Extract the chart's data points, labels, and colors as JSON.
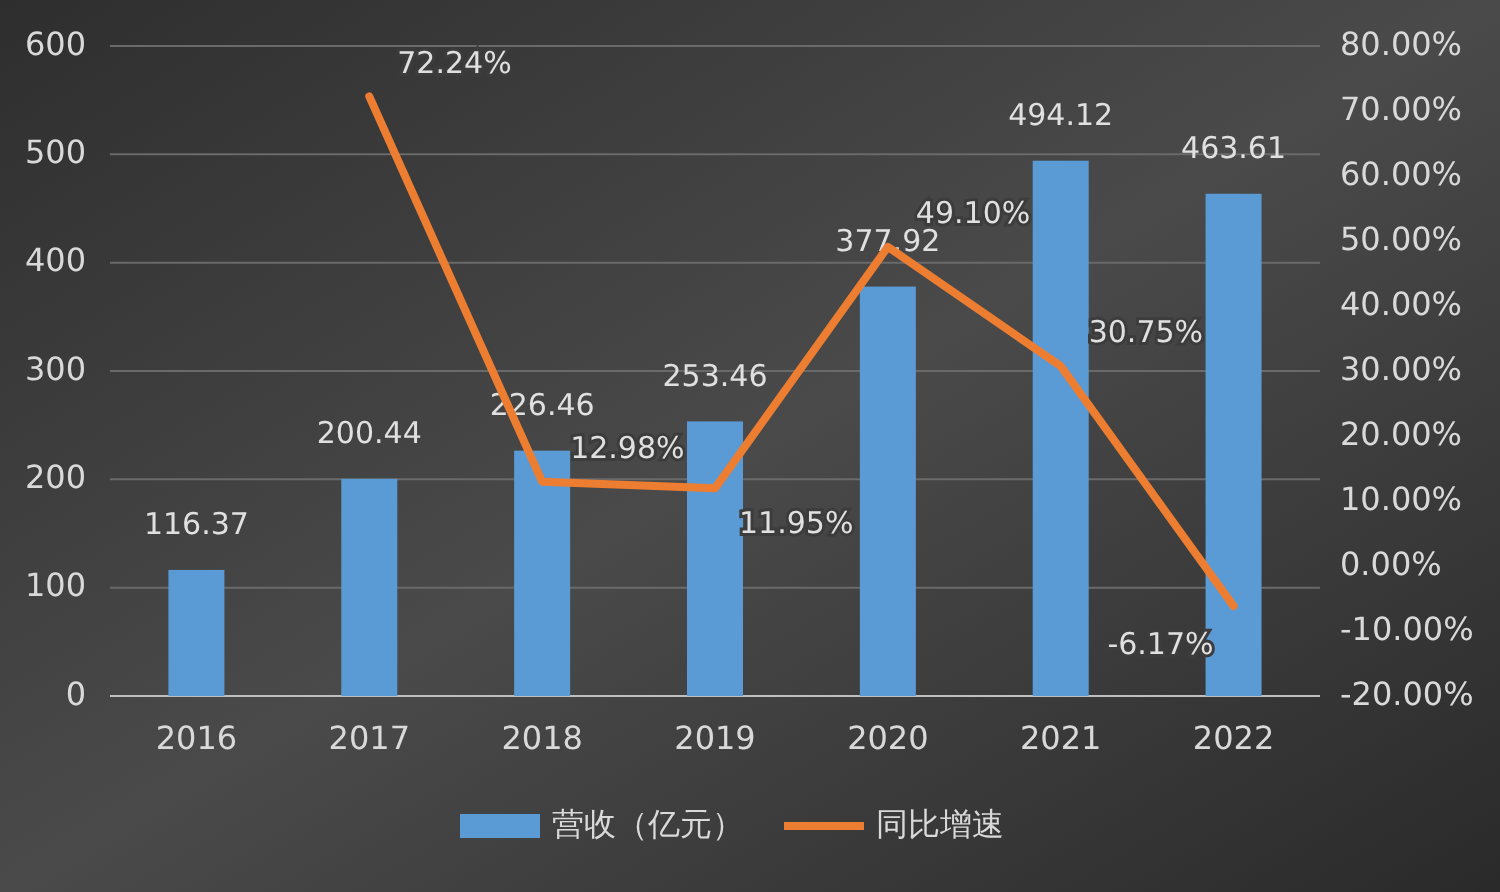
{
  "chart_data": {
    "type": "bar",
    "categories": [
      "2016",
      "2017",
      "2018",
      "2019",
      "2020",
      "2021",
      "2022"
    ],
    "series": [
      {
        "name": "营收（亿元）",
        "color": "#5b9bd5",
        "values": [
          116.37,
          200.44,
          226.46,
          253.46,
          377.92,
          494.12,
          463.61
        ],
        "value_labels": [
          "116.37",
          "200.44",
          "226.46",
          "253.46",
          "377.92",
          "494.12",
          "463.61"
        ]
      },
      {
        "name": "同比增速",
        "type": "line",
        "axis": "y2",
        "color": "#ed7d31",
        "values": [
          null,
          72.24,
          12.98,
          11.95,
          49.1,
          30.75,
          -6.17
        ],
        "value_labels": [
          null,
          "72.24%",
          "12.98%",
          "11.95%",
          "49.10%",
          "30.75%",
          "-6.17%"
        ]
      }
    ],
    "ylim": [
      0,
      600
    ],
    "yticks": [
      0,
      100,
      200,
      300,
      400,
      500,
      600
    ],
    "y2lim": [
      -20,
      80
    ],
    "y2ticks": [
      {
        "value": -20,
        "label": "-20.00%"
      },
      {
        "value": -10,
        "label": "-10.00%"
      },
      {
        "value": 0,
        "label": "0.00%"
      },
      {
        "value": 10,
        "label": "10.00%"
      },
      {
        "value": 20,
        "label": "20.00%"
      },
      {
        "value": 30,
        "label": "30.00%"
      },
      {
        "value": 40,
        "label": "40.00%"
      },
      {
        "value": 50,
        "label": "50.00%"
      },
      {
        "value": 60,
        "label": "60.00%"
      },
      {
        "value": 70,
        "label": "70.00%"
      },
      {
        "value": 80,
        "label": "80.00%"
      }
    ],
    "grid": "y",
    "legend": "bottom",
    "marker": "none",
    "line_style": "solid"
  }
}
